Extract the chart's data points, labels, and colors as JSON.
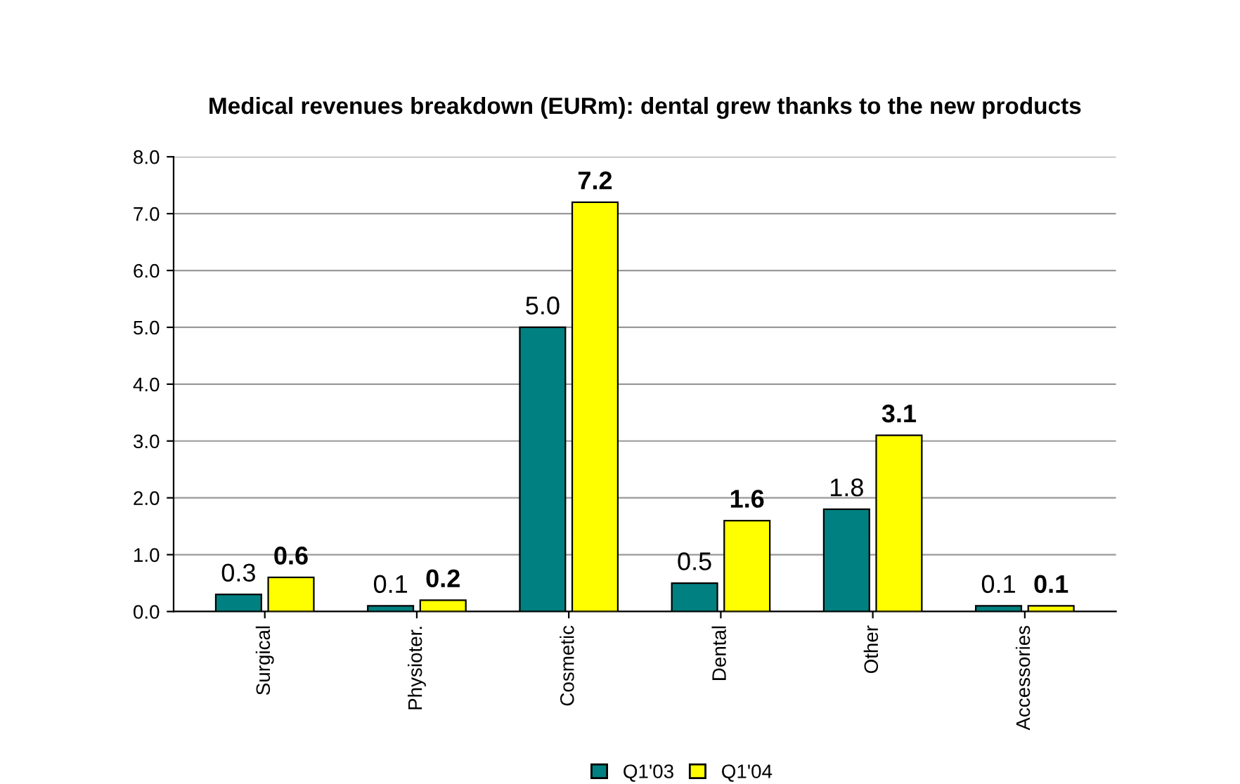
{
  "chart_data": {
    "type": "bar",
    "title": "Medical revenues breakdown (EURm): dental grew thanks to the new products",
    "categories": [
      "Surgical",
      "Physioter.",
      "Cosmetic",
      "Dental",
      "Other",
      "Accessories"
    ],
    "series": [
      {
        "name": "Q1'03",
        "color": "#008080",
        "values": [
          0.3,
          0.1,
          5.0,
          0.5,
          1.8,
          0.1
        ],
        "value_labels": [
          "0.3",
          "0.1",
          "5.0",
          "0.5",
          "1.8",
          "0.1"
        ]
      },
      {
        "name": "Q1'04",
        "color": "#ffff00",
        "values": [
          0.6,
          0.2,
          7.2,
          1.6,
          3.1,
          0.1
        ],
        "value_labels": [
          "0.6",
          "0.2",
          "7.2",
          "1.6",
          "3.1",
          "0.1"
        ]
      }
    ],
    "ylim": [
      0,
      8
    ],
    "yticks": [
      {
        "value": 0,
        "label": "0.0"
      },
      {
        "value": 1,
        "label": "1.0"
      },
      {
        "value": 2,
        "label": "2.0"
      },
      {
        "value": 3,
        "label": "3.0"
      },
      {
        "value": 4,
        "label": "4.0"
      },
      {
        "value": 5,
        "label": "5.0"
      },
      {
        "value": 6,
        "label": "6.0"
      },
      {
        "value": 7,
        "label": "7.0"
      },
      {
        "value": 8,
        "label": "8.0"
      }
    ],
    "grid": "y",
    "legend": "bottom"
  }
}
